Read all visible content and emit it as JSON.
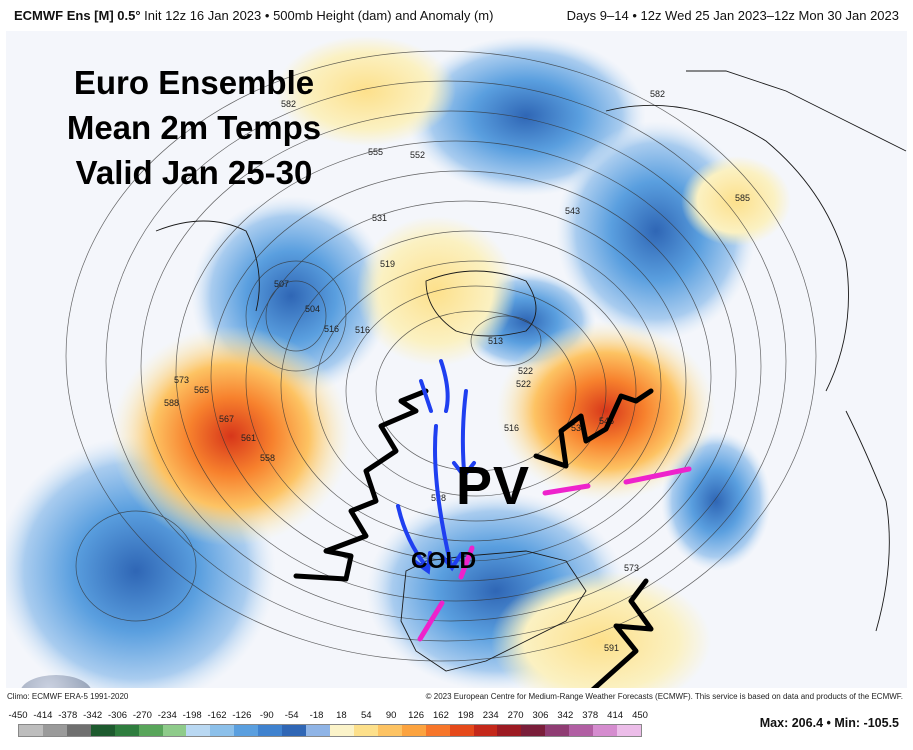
{
  "header": {
    "model": "ECMWF Ens [M] 0.5°",
    "init": "Init 12z 16 Jan 2023",
    "field": "500mb Height (dam) and Anomaly (m)",
    "valid": "Days 9–14 • 12z Wed 25 Jan 2023–12z Mon 30 Jan 2023"
  },
  "annotations": {
    "title_line1": "Euro Ensemble",
    "title_line2": "Mean 2m Temps",
    "title_line3": "Valid Jan 25-30",
    "pv": "PV",
    "cold": "COLD"
  },
  "contour_labels": [
    "582",
    "555",
    "552",
    "531",
    "519",
    "516",
    "504",
    "507",
    "516",
    "543",
    "582",
    "585",
    "567",
    "561",
    "558",
    "516",
    "546",
    "534",
    "522",
    "513",
    "522",
    "528",
    "591",
    "573",
    "588",
    "565",
    "573"
  ],
  "logo_text": "WEATHERBELL",
  "credits": {
    "left": "Climo: ECMWF ERA-5 1991-2020",
    "right": "© 2023 European Centre for Medium-Range Weather Forecasts (ECMWF). This service is based on data and products of the ECMWF."
  },
  "colorbar": {
    "labels": [
      "-450",
      "-414",
      "-378",
      "-342",
      "-306",
      "-270",
      "-234",
      "-198",
      "-162",
      "-126",
      "-90",
      "-54",
      "-18",
      "18",
      "54",
      "90",
      "126",
      "162",
      "198",
      "234",
      "270",
      "306",
      "342",
      "378",
      "414",
      "450"
    ],
    "colors": [
      "#bdbdbd",
      "#9a9a9a",
      "#6f6f6f",
      "#1d5a2e",
      "#2e7d3e",
      "#58a55a",
      "#8ecb8a",
      "#b9d8f2",
      "#8cc0ea",
      "#5a9fdf",
      "#3f82cf",
      "#2f66b5",
      "#8fb4e6",
      "#fbf3c9",
      "#fde08b",
      "#fdc363",
      "#fca33f",
      "#f7762a",
      "#e5491a",
      "#c4281a",
      "#9c1a22",
      "#7a1e3a",
      "#8f3c73",
      "#b15fa3",
      "#d58ccf",
      "#ecbde9"
    ]
  },
  "stats": {
    "max_label": "Max:",
    "max_value": "206.4",
    "sep": "•",
    "min_label": "Min:",
    "min_value": "-105.5"
  },
  "colors": {
    "warm_anomaly": "#f57a2e",
    "cold_anomaly": "#3f7fcf",
    "arrow_blue": "#1f3ff0",
    "line_magenta": "#ee22cc"
  }
}
